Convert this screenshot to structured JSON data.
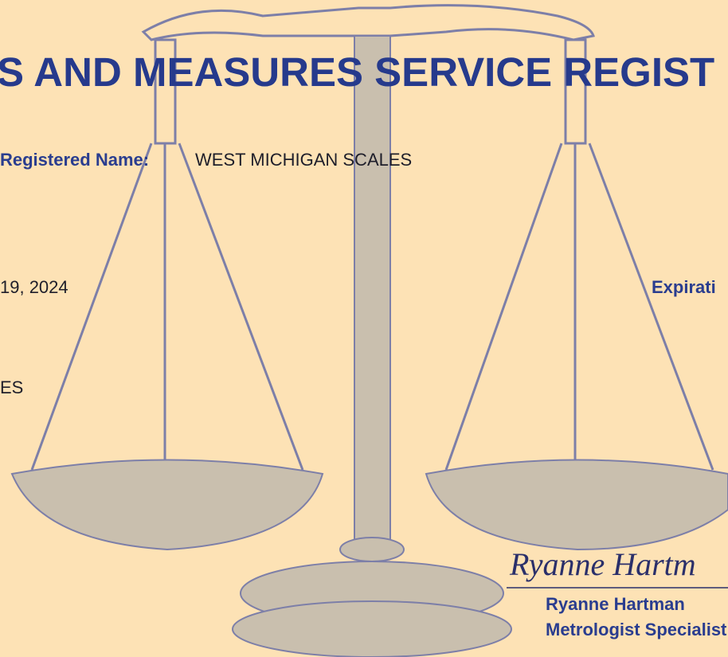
{
  "header": {
    "title": "S AND MEASURES SERVICE REGIST"
  },
  "fields": {
    "registered_name_label": "Registered Name:",
    "registered_name": "WEST MICHIGAN SCALES",
    "date_fragment": "19, 2024",
    "expiration_fragment": "Expirati",
    "fragment": "ES"
  },
  "signature": {
    "script": "Ryanne Hartm",
    "name": "Ryanne Hartman",
    "title": "Metrologist Specialist"
  }
}
